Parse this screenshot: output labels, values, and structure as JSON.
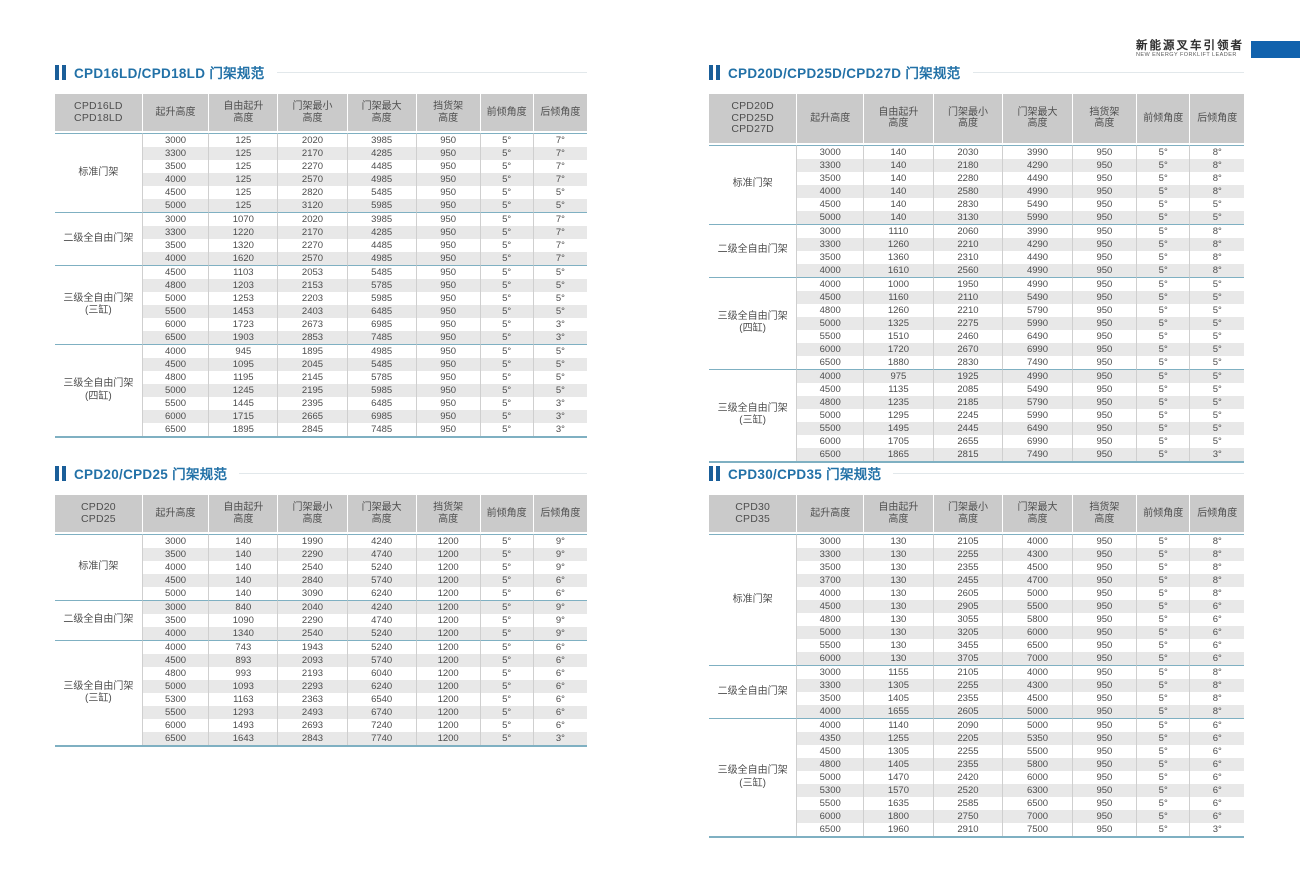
{
  "brand": {
    "cn": "新能源叉车引领者",
    "en": "NEW ENERGY FORKLIFT LEADER",
    "accent_color": "#1162ad"
  },
  "colors": {
    "title_blue": "#2271a7",
    "title_bar_blue": "#1a5e99",
    "header_bg": "#cacaca",
    "zebra_gray": "#e8e8e8",
    "separator_teal": "#7fb0c2",
    "grid_line": "#cfcfcf"
  },
  "tables": [
    {
      "title": "CPD16LD/CPD18LD 门架规范",
      "model_lines": [
        "CPD16LD",
        "CPD18LD"
      ],
      "columns": [
        [
          "起升高度"
        ],
        [
          "自由起升",
          "高度"
        ],
        [
          "门架最小",
          "高度"
        ],
        [
          "门架最大",
          "高度"
        ],
        [
          "挡货架",
          "高度"
        ],
        [
          "前倾角度"
        ],
        [
          "后倾角度"
        ]
      ],
      "groups": [
        {
          "label_lines": [
            "标准门架"
          ],
          "rows": [
            [
              3000,
              125,
              2020,
              3985,
              950,
              "5°",
              "7°"
            ],
            [
              3300,
              125,
              2170,
              4285,
              950,
              "5°",
              "7°"
            ],
            [
              3500,
              125,
              2270,
              4485,
              950,
              "5°",
              "7°"
            ],
            [
              4000,
              125,
              2570,
              4985,
              950,
              "5°",
              "7°"
            ],
            [
              4500,
              125,
              2820,
              5485,
              950,
              "5°",
              "5°"
            ],
            [
              5000,
              125,
              3120,
              5985,
              950,
              "5°",
              "5°"
            ]
          ]
        },
        {
          "label_lines": [
            "二级全自由门架"
          ],
          "rows": [
            [
              3000,
              1070,
              2020,
              3985,
              950,
              "5°",
              "7°"
            ],
            [
              3300,
              1220,
              2170,
              4285,
              950,
              "5°",
              "7°"
            ],
            [
              3500,
              1320,
              2270,
              4485,
              950,
              "5°",
              "7°"
            ],
            [
              4000,
              1620,
              2570,
              4985,
              950,
              "5°",
              "7°"
            ]
          ]
        },
        {
          "label_lines": [
            "三级全自由门架",
            "(三缸)"
          ],
          "rows": [
            [
              4500,
              1103,
              2053,
              5485,
              950,
              "5°",
              "5°"
            ],
            [
              4800,
              1203,
              2153,
              5785,
              950,
              "5°",
              "5°"
            ],
            [
              5000,
              1253,
              2203,
              5985,
              950,
              "5°",
              "5°"
            ],
            [
              5500,
              1453,
              2403,
              6485,
              950,
              "5°",
              "5°"
            ],
            [
              6000,
              1723,
              2673,
              6985,
              950,
              "5°",
              "3°"
            ],
            [
              6500,
              1903,
              2853,
              7485,
              950,
              "5°",
              "3°"
            ]
          ]
        },
        {
          "label_lines": [
            "三级全自由门架",
            "(四缸)"
          ],
          "rows": [
            [
              4000,
              945,
              1895,
              4985,
              950,
              "5°",
              "5°"
            ],
            [
              4500,
              1095,
              2045,
              5485,
              950,
              "5°",
              "5°"
            ],
            [
              4800,
              1195,
              2145,
              5785,
              950,
              "5°",
              "5°"
            ],
            [
              5000,
              1245,
              2195,
              5985,
              950,
              "5°",
              "5°"
            ],
            [
              5500,
              1445,
              2395,
              6485,
              950,
              "5°",
              "3°"
            ],
            [
              6000,
              1715,
              2665,
              6985,
              950,
              "5°",
              "3°"
            ],
            [
              6500,
              1895,
              2845,
              7485,
              950,
              "5°",
              "3°"
            ]
          ]
        }
      ]
    },
    {
      "title": "CPD20/CPD25 门架规范",
      "model_lines": [
        "CPD20",
        "CPD25"
      ],
      "columns": [
        [
          "起升高度"
        ],
        [
          "自由起升",
          "高度"
        ],
        [
          "门架最小",
          "高度"
        ],
        [
          "门架最大",
          "高度"
        ],
        [
          "挡货架",
          "高度"
        ],
        [
          "前倾角度"
        ],
        [
          "后倾角度"
        ]
      ],
      "groups": [
        {
          "label_lines": [
            "标准门架"
          ],
          "rows": [
            [
              3000,
              140,
              1990,
              4240,
              1200,
              "5°",
              "9°"
            ],
            [
              3500,
              140,
              2290,
              4740,
              1200,
              "5°",
              "9°"
            ],
            [
              4000,
              140,
              2540,
              5240,
              1200,
              "5°",
              "9°"
            ],
            [
              4500,
              140,
              2840,
              5740,
              1200,
              "5°",
              "6°"
            ],
            [
              5000,
              140,
              3090,
              6240,
              1200,
              "5°",
              "6°"
            ]
          ]
        },
        {
          "label_lines": [
            "二级全自由门架"
          ],
          "rows": [
            [
              3000,
              840,
              2040,
              4240,
              1200,
              "5°",
              "9°"
            ],
            [
              3500,
              1090,
              2290,
              4740,
              1200,
              "5°",
              "9°"
            ],
            [
              4000,
              1340,
              2540,
              5240,
              1200,
              "5°",
              "9°"
            ]
          ]
        },
        {
          "label_lines": [
            "三级全自由门架",
            "(三缸)"
          ],
          "rows": [
            [
              4000,
              743,
              1943,
              5240,
              1200,
              "5°",
              "6°"
            ],
            [
              4500,
              893,
              2093,
              5740,
              1200,
              "5°",
              "6°"
            ],
            [
              4800,
              993,
              2193,
              6040,
              1200,
              "5°",
              "6°"
            ],
            [
              5000,
              1093,
              2293,
              6240,
              1200,
              "5°",
              "6°"
            ],
            [
              5300,
              1163,
              2363,
              6540,
              1200,
              "5°",
              "6°"
            ],
            [
              5500,
              1293,
              2493,
              6740,
              1200,
              "5°",
              "6°"
            ],
            [
              6000,
              1493,
              2693,
              7240,
              1200,
              "5°",
              "6°"
            ],
            [
              6500,
              1643,
              2843,
              7740,
              1200,
              "5°",
              "3°"
            ]
          ]
        }
      ]
    },
    {
      "title": "CPD20D/CPD25D/CPD27D 门架规范",
      "model_lines": [
        "CPD20D",
        "CPD25D",
        "CPD27D"
      ],
      "columns": [
        [
          "起升高度"
        ],
        [
          "自由起升",
          "高度"
        ],
        [
          "门架最小",
          "高度"
        ],
        [
          "门架最大",
          "高度"
        ],
        [
          "挡货架",
          "高度"
        ],
        [
          "前倾角度"
        ],
        [
          "后倾角度"
        ]
      ],
      "groups": [
        {
          "label_lines": [
            "标准门架"
          ],
          "rows": [
            [
              3000,
              140,
              2030,
              3990,
              950,
              "5°",
              "8°"
            ],
            [
              3300,
              140,
              2180,
              4290,
              950,
              "5°",
              "8°"
            ],
            [
              3500,
              140,
              2280,
              4490,
              950,
              "5°",
              "8°"
            ],
            [
              4000,
              140,
              2580,
              4990,
              950,
              "5°",
              "8°"
            ],
            [
              4500,
              140,
              2830,
              5490,
              950,
              "5°",
              "5°"
            ],
            [
              5000,
              140,
              3130,
              5990,
              950,
              "5°",
              "5°"
            ]
          ]
        },
        {
          "label_lines": [
            "二级全自由门架"
          ],
          "rows": [
            [
              3000,
              1110,
              2060,
              3990,
              950,
              "5°",
              "8°"
            ],
            [
              3300,
              1260,
              2210,
              4290,
              950,
              "5°",
              "8°"
            ],
            [
              3500,
              1360,
              2310,
              4490,
              950,
              "5°",
              "8°"
            ],
            [
              4000,
              1610,
              2560,
              4990,
              950,
              "5°",
              "8°"
            ]
          ]
        },
        {
          "label_lines": [
            "三级全自由门架",
            "(四缸)"
          ],
          "rows": [
            [
              4000,
              1000,
              1950,
              4990,
              950,
              "5°",
              "5°"
            ],
            [
              4500,
              1160,
              2110,
              5490,
              950,
              "5°",
              "5°"
            ],
            [
              4800,
              1260,
              2210,
              5790,
              950,
              "5°",
              "5°"
            ],
            [
              5000,
              1325,
              2275,
              5990,
              950,
              "5°",
              "5°"
            ],
            [
              5500,
              1510,
              2460,
              6490,
              950,
              "5°",
              "5°"
            ],
            [
              6000,
              1720,
              2670,
              6990,
              950,
              "5°",
              "5°"
            ],
            [
              6500,
              1880,
              2830,
              7490,
              950,
              "5°",
              "5°"
            ]
          ]
        },
        {
          "label_lines": [
            "三级全自由门架",
            "(三缸)"
          ],
          "rows": [
            [
              4000,
              975,
              1925,
              4990,
              950,
              "5°",
              "5°"
            ],
            [
              4500,
              1135,
              2085,
              5490,
              950,
              "5°",
              "5°"
            ],
            [
              4800,
              1235,
              2185,
              5790,
              950,
              "5°",
              "5°"
            ],
            [
              5000,
              1295,
              2245,
              5990,
              950,
              "5°",
              "5°"
            ],
            [
              5500,
              1495,
              2445,
              6490,
              950,
              "5°",
              "5°"
            ],
            [
              6000,
              1705,
              2655,
              6990,
              950,
              "5°",
              "5°"
            ],
            [
              6500,
              1865,
              2815,
              7490,
              950,
              "5°",
              "3°"
            ]
          ]
        }
      ]
    },
    {
      "title": "CPD30/CPD35 门架规范",
      "model_lines": [
        "CPD30",
        "CPD35"
      ],
      "columns": [
        [
          "起升高度"
        ],
        [
          "自由起升",
          "高度"
        ],
        [
          "门架最小",
          "高度"
        ],
        [
          "门架最大",
          "高度"
        ],
        [
          "挡货架",
          "高度"
        ],
        [
          "前倾角度"
        ],
        [
          "后倾角度"
        ]
      ],
      "groups": [
        {
          "label_lines": [
            "标准门架"
          ],
          "rows": [
            [
              3000,
              130,
              2105,
              4000,
              950,
              "5°",
              "8°"
            ],
            [
              3300,
              130,
              2255,
              4300,
              950,
              "5°",
              "8°"
            ],
            [
              3500,
              130,
              2355,
              4500,
              950,
              "5°",
              "8°"
            ],
            [
              3700,
              130,
              2455,
              4700,
              950,
              "5°",
              "8°"
            ],
            [
              4000,
              130,
              2605,
              5000,
              950,
              "5°",
              "8°"
            ],
            [
              4500,
              130,
              2905,
              5500,
              950,
              "5°",
              "6°"
            ],
            [
              4800,
              130,
              3055,
              5800,
              950,
              "5°",
              "6°"
            ],
            [
              5000,
              130,
              3205,
              6000,
              950,
              "5°",
              "6°"
            ],
            [
              5500,
              130,
              3455,
              6500,
              950,
              "5°",
              "6°"
            ],
            [
              6000,
              130,
              3705,
              7000,
              950,
              "5°",
              "6°"
            ]
          ]
        },
        {
          "label_lines": [
            "二级全自由门架"
          ],
          "rows": [
            [
              3000,
              1155,
              2105,
              4000,
              950,
              "5°",
              "8°"
            ],
            [
              3300,
              1305,
              2255,
              4300,
              950,
              "5°",
              "8°"
            ],
            [
              3500,
              1405,
              2355,
              4500,
              950,
              "5°",
              "8°"
            ],
            [
              4000,
              1655,
              2605,
              5000,
              950,
              "5°",
              "8°"
            ]
          ]
        },
        {
          "label_lines": [
            "三级全自由门架",
            "(三缸)"
          ],
          "rows": [
            [
              4000,
              1140,
              2090,
              5000,
              950,
              "5°",
              "6°"
            ],
            [
              4350,
              1255,
              2205,
              5350,
              950,
              "5°",
              "6°"
            ],
            [
              4500,
              1305,
              2255,
              5500,
              950,
              "5°",
              "6°"
            ],
            [
              4800,
              1405,
              2355,
              5800,
              950,
              "5°",
              "6°"
            ],
            [
              5000,
              1470,
              2420,
              6000,
              950,
              "5°",
              "6°"
            ],
            [
              5300,
              1570,
              2520,
              6300,
              950,
              "5°",
              "6°"
            ],
            [
              5500,
              1635,
              2585,
              6500,
              950,
              "5°",
              "6°"
            ],
            [
              6000,
              1800,
              2750,
              7000,
              950,
              "5°",
              "6°"
            ],
            [
              6500,
              1960,
              2910,
              7500,
              950,
              "5°",
              "3°"
            ]
          ]
        }
      ]
    }
  ]
}
